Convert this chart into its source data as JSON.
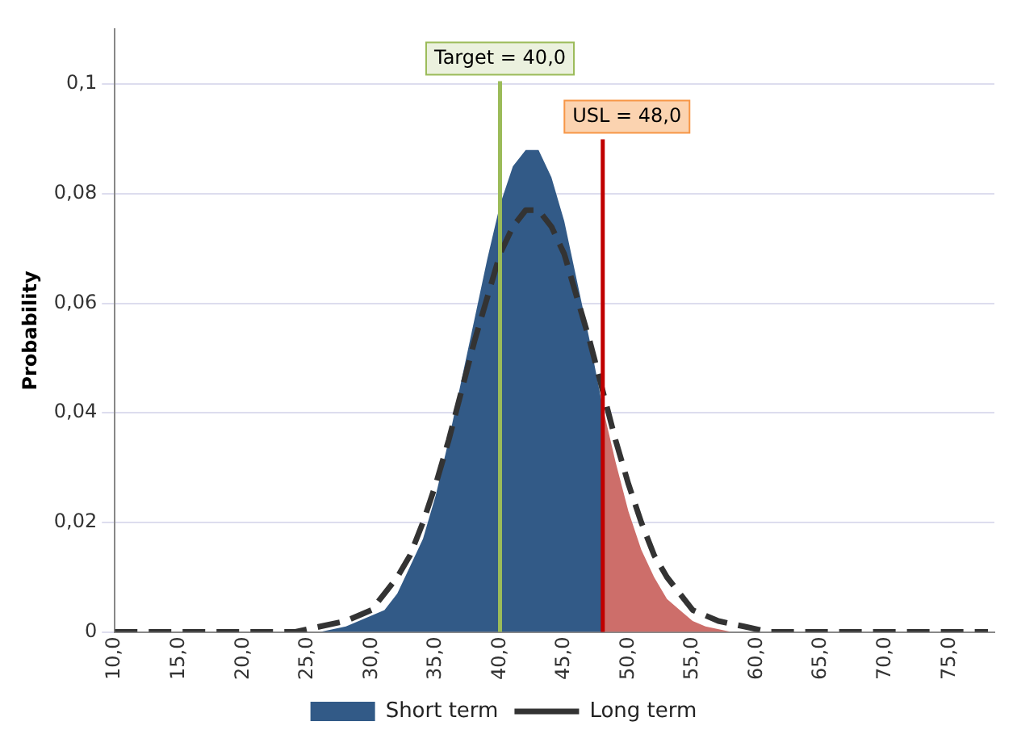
{
  "chart_data": {
    "type": "area",
    "ylabel": "Probability",
    "xlim": [
      10,
      78.5
    ],
    "ylim": [
      0,
      0.11
    ],
    "xticks": [
      {
        "value": 10,
        "label": "10,0"
      },
      {
        "value": 15,
        "label": "15,0"
      },
      {
        "value": 20,
        "label": "20,0"
      },
      {
        "value": 25,
        "label": "25,0"
      },
      {
        "value": 30,
        "label": "30,0"
      },
      {
        "value": 35,
        "label": "35,0"
      },
      {
        "value": 40,
        "label": "40,0"
      },
      {
        "value": 45,
        "label": "45,0"
      },
      {
        "value": 50,
        "label": "50,0"
      },
      {
        "value": 55,
        "label": "55,0"
      },
      {
        "value": 60,
        "label": "60,0"
      },
      {
        "value": 65,
        "label": "65,0"
      },
      {
        "value": 70,
        "label": "70,0"
      },
      {
        "value": 75,
        "label": "75,0"
      }
    ],
    "yticks": [
      {
        "value": 0,
        "label": "0"
      },
      {
        "value": 0.02,
        "label": "0,02"
      },
      {
        "value": 0.04,
        "label": "0,04"
      },
      {
        "value": 0.06,
        "label": "0,06"
      },
      {
        "value": 0.08,
        "label": "0,08"
      },
      {
        "value": 0.1,
        "label": "0,1"
      }
    ],
    "grid": "y",
    "legend": "bottom",
    "marker": "none",
    "series": [
      {
        "name": "Short term",
        "color": "#325a87",
        "x": [
          26,
          28,
          30,
          31,
          32,
          33,
          34,
          35,
          36,
          37,
          38,
          39,
          40,
          41,
          42,
          43,
          44,
          45,
          46,
          47,
          48
        ],
        "values": [
          0.0,
          0.001,
          0.003,
          0.004,
          0.007,
          0.012,
          0.017,
          0.025,
          0.035,
          0.046,
          0.057,
          0.068,
          0.078,
          0.085,
          0.088,
          0.088,
          0.083,
          0.075,
          0.064,
          0.053,
          0.041
        ]
      },
      {
        "type": "area",
        "color": "#cd6e6a",
        "x": [
          48,
          49,
          50,
          51,
          52,
          53,
          54,
          55,
          56,
          58
        ],
        "values": [
          0.041,
          0.031,
          0.022,
          0.015,
          0.01,
          0.006,
          0.004,
          0.002,
          0.001,
          0.0
        ]
      },
      {
        "name": "Long term",
        "type": "line",
        "line_style": "dashed",
        "color": "#333333",
        "x": [
          10,
          24,
          26,
          28,
          30,
          31,
          32,
          33,
          34,
          35,
          36,
          37,
          38,
          39,
          40,
          41,
          42,
          43,
          44,
          45,
          46,
          47,
          48,
          49,
          50,
          51,
          52,
          53,
          54,
          55,
          57,
          59,
          61,
          78
        ],
        "values": [
          0,
          0.0,
          0.001,
          0.002,
          0.004,
          0.007,
          0.01,
          0.014,
          0.02,
          0.027,
          0.035,
          0.044,
          0.053,
          0.061,
          0.069,
          0.074,
          0.077,
          0.077,
          0.074,
          0.069,
          0.061,
          0.053,
          0.044,
          0.035,
          0.027,
          0.02,
          0.014,
          0.01,
          0.007,
          0.004,
          0.002,
          0.001,
          0.0,
          0
        ]
      }
    ],
    "ref_lines": [
      {
        "axis": "x",
        "value": 40,
        "label": "Target = 40,0",
        "color": "#9bbb59"
      },
      {
        "axis": "x",
        "value": 48,
        "label": "USL = 48,0",
        "color": "#c00000"
      }
    ]
  }
}
